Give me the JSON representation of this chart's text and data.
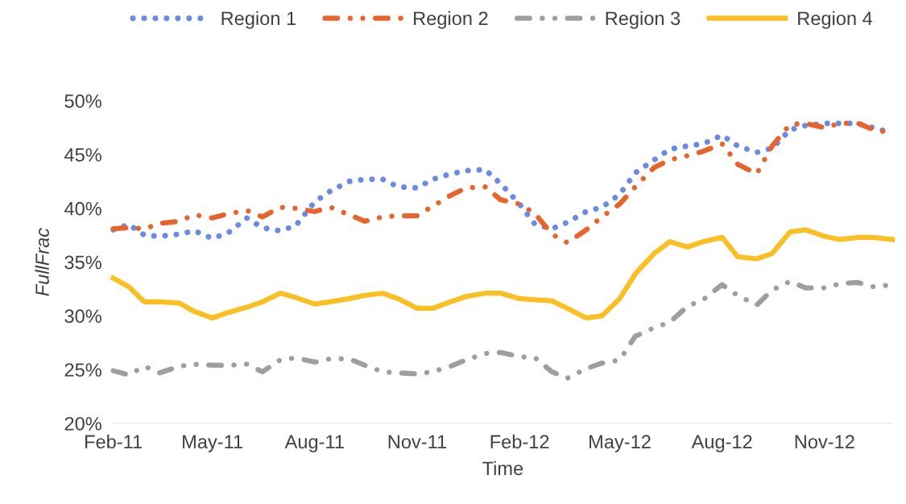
{
  "chart_data": {
    "type": "line",
    "xlabel": "Time",
    "ylabel": "FullFrac",
    "x": [
      "2011-02-01",
      "2011-02-15",
      "2011-03-01",
      "2011-03-15",
      "2011-04-01",
      "2011-04-15",
      "2011-05-01",
      "2011-05-15",
      "2011-06-01",
      "2011-06-15",
      "2011-07-01",
      "2011-07-15",
      "2011-08-01",
      "2011-08-15",
      "2011-09-01",
      "2011-09-15",
      "2011-10-01",
      "2011-10-15",
      "2011-11-01",
      "2011-11-15",
      "2011-12-01",
      "2011-12-15",
      "2012-01-01",
      "2012-01-15",
      "2012-02-01",
      "2012-02-15",
      "2012-03-01",
      "2012-03-15",
      "2012-04-01",
      "2012-04-15",
      "2012-05-01",
      "2012-05-15",
      "2012-06-01",
      "2012-06-15",
      "2012-07-01",
      "2012-07-15",
      "2012-08-01",
      "2012-08-15",
      "2012-09-01",
      "2012-09-15",
      "2012-10-01",
      "2012-10-15",
      "2012-11-01",
      "2012-11-15",
      "2012-12-01",
      "2012-12-15",
      "2013-01-01"
    ],
    "series": [
      {
        "name": "Region 1",
        "color": "#6a8ae6",
        "line_style": "dotted",
        "values": [
          38.0,
          38.5,
          37.5,
          37.4,
          37.6,
          37.9,
          37.2,
          37.7,
          39.1,
          38.2,
          37.9,
          38.4,
          40.6,
          41.6,
          42.5,
          42.7,
          42.7,
          42.0,
          41.9,
          42.7,
          43.2,
          43.5,
          43.6,
          42.3,
          40.4,
          38.5,
          38.1,
          38.7,
          39.7,
          40.1,
          41.3,
          43.3,
          44.5,
          45.5,
          45.8,
          46.0,
          46.8,
          45.8,
          45.2,
          45.6,
          47.3,
          47.7,
          47.9,
          47.9,
          47.9,
          47.5,
          47.0
        ]
      },
      {
        "name": "Region 2",
        "color": "#e8642c",
        "line_style": "dashed",
        "values": [
          38.1,
          38.2,
          38.1,
          38.6,
          38.8,
          39.4,
          39.1,
          39.5,
          39.8,
          39.2,
          40.1,
          40.0,
          39.7,
          40.1,
          39.4,
          38.8,
          39.2,
          39.3,
          39.3,
          40.2,
          41.2,
          41.9,
          42.0,
          40.8,
          40.4,
          39.5,
          37.6,
          36.8,
          38.0,
          39.2,
          40.4,
          42.0,
          43.8,
          44.5,
          44.9,
          45.3,
          46.0,
          44.1,
          43.2,
          45.8,
          47.8,
          47.9,
          47.5,
          47.9,
          47.9,
          47.3,
          47.0
        ]
      },
      {
        "name": "Region 3",
        "color": "#9e9e9e",
        "line_style": "dashed",
        "values": [
          24.9,
          24.5,
          25.3,
          24.7,
          25.3,
          25.5,
          25.4,
          25.4,
          25.5,
          24.8,
          25.9,
          26.1,
          25.7,
          26.0,
          26.0,
          25.4,
          24.8,
          24.7,
          24.6,
          24.8,
          25.3,
          25.9,
          26.5,
          26.6,
          26.2,
          26.1,
          24.8,
          24.2,
          25.1,
          25.6,
          25.9,
          28.1,
          28.9,
          29.4,
          30.9,
          31.5,
          32.9,
          31.9,
          31.0,
          32.4,
          33.2,
          32.6,
          32.6,
          33.0,
          33.1,
          32.7,
          32.9
        ]
      },
      {
        "name": "Region 4",
        "color": "#fbbf24",
        "line_style": "solid",
        "values": [
          33.5,
          32.7,
          31.3,
          31.3,
          31.2,
          30.4,
          29.8,
          30.3,
          30.8,
          31.3,
          32.1,
          31.7,
          31.1,
          31.3,
          31.6,
          31.9,
          32.1,
          31.6,
          30.7,
          30.7,
          31.3,
          31.8,
          32.1,
          32.1,
          31.6,
          31.5,
          31.4,
          30.7,
          29.8,
          30.0,
          31.6,
          33.9,
          35.8,
          36.9,
          36.4,
          36.9,
          37.3,
          35.5,
          35.3,
          35.8,
          37.8,
          38.0,
          37.4,
          37.1,
          37.3,
          37.3,
          37.1
        ]
      }
    ],
    "xticks": [
      {
        "value": "2011-02-01",
        "label": "Feb-11"
      },
      {
        "value": "2011-05-01",
        "label": "May-11"
      },
      {
        "value": "2011-08-01",
        "label": "Aug-11"
      },
      {
        "value": "2011-11-01",
        "label": "Nov-11"
      },
      {
        "value": "2012-02-01",
        "label": "Feb-12"
      },
      {
        "value": "2012-05-01",
        "label": "May-12"
      },
      {
        "value": "2012-08-01",
        "label": "Aug-12"
      },
      {
        "value": "2012-11-01",
        "label": "Nov-12"
      }
    ],
    "xlim": [
      "2011-02-01",
      "2013-01-01"
    ],
    "ylim": [
      20,
      50
    ],
    "yticks": [
      {
        "value": 20,
        "label": "20%"
      },
      {
        "value": 25,
        "label": "25%"
      },
      {
        "value": 30,
        "label": "30%"
      },
      {
        "value": 35,
        "label": "35%"
      },
      {
        "value": 40,
        "label": "40%"
      },
      {
        "value": 45,
        "label": "45%"
      },
      {
        "value": 50,
        "label": "50%"
      }
    ],
    "legend": "top",
    "grid": false
  }
}
